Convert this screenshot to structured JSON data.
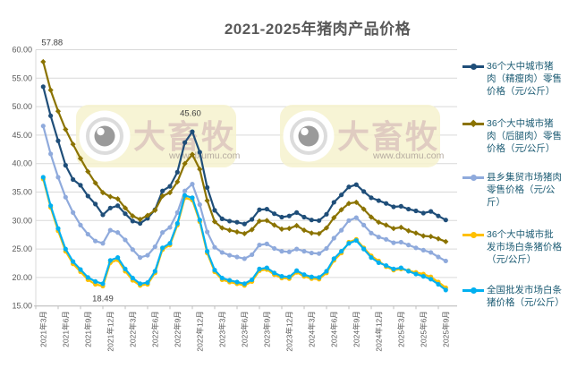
{
  "title": "2021-2025年猪肉产品价格",
  "watermark": {
    "brand": "大畜牧",
    "url": "www.dxumu.com"
  },
  "annotations": [
    {
      "text": "57.88",
      "series": 1,
      "point": 0
    },
    {
      "text": "45.60",
      "series": 0,
      "point": 20
    },
    {
      "text": "18.49",
      "series": 3,
      "point": 8
    }
  ],
  "chart_data": {
    "type": "line",
    "x_start": "2021年3月",
    "x_interval": "month",
    "x_tick_labels": [
      "2021年3月",
      "2021年6月",
      "2021年9月",
      "2021年12月",
      "2022年3月",
      "2022年6月",
      "2022年9月",
      "2022年12月",
      "2023年3月",
      "2023年6月",
      "2023年9月",
      "2023年12月",
      "2024年3月",
      "2024年6月",
      "2024年9月",
      "2024年12月",
      "2025年3月",
      "2025年6月",
      "2025年9月"
    ],
    "y_tick_labels": [
      "60.00",
      "55.00",
      "50.00",
      "45.00",
      "40.00",
      "35.00",
      "30.00",
      "25.00",
      "20.00",
      "15.00"
    ],
    "ylim": [
      15,
      60
    ],
    "grid": "horizontal",
    "legend_position": "right",
    "series": [
      {
        "name": "36个大中城市猪肉（精瘦肉）零售价格（元/公斤）",
        "color": "#1F4E79",
        "marker": "circle",
        "values": [
          53.5,
          48.4,
          44.0,
          39.7,
          37.2,
          36.2,
          34.3,
          32.9,
          31.0,
          32.2,
          32.6,
          31.2,
          29.9,
          29.5,
          30.4,
          31.9,
          35.2,
          36.0,
          38.5,
          43.7,
          45.6,
          42.0,
          35.8,
          31.8,
          30.3,
          29.9,
          29.7,
          29.4,
          30.2,
          31.9,
          32.0,
          31.2,
          30.6,
          30.8,
          31.4,
          30.6,
          30.1,
          30.0,
          31.1,
          33.2,
          34.5,
          35.9,
          36.3,
          35.1,
          34.0,
          33.5,
          33.0,
          32.4,
          32.5,
          32.0,
          31.7,
          31.3,
          31.6,
          30.8,
          30.1
        ]
      },
      {
        "name": "36个大中城市猪肉（后腿肉）零售价格（元/公斤）",
        "color": "#8B7300",
        "marker": "diamond",
        "values": [
          57.88,
          52.9,
          49.2,
          46.0,
          43.4,
          40.9,
          38.6,
          36.6,
          34.9,
          34.2,
          33.8,
          32.2,
          30.8,
          30.2,
          30.9,
          31.8,
          34.3,
          34.9,
          36.8,
          40.0,
          41.6,
          39.0,
          33.5,
          29.8,
          28.7,
          28.3,
          28.0,
          27.7,
          28.4,
          29.9,
          30.0,
          29.2,
          28.5,
          28.6,
          29.1,
          28.3,
          27.8,
          27.7,
          28.7,
          30.5,
          31.9,
          33.0,
          33.2,
          32.0,
          30.6,
          29.7,
          29.2,
          28.6,
          28.8,
          28.2,
          27.8,
          27.3,
          27.2,
          26.8,
          26.3
        ]
      },
      {
        "name": "县乡集贸市场猪肉零售价格（元/公斤）",
        "color": "#8FAADC",
        "marker": "circle",
        "values": [
          46.6,
          41.7,
          37.6,
          34.1,
          31.4,
          29.2,
          27.6,
          26.4,
          26.0,
          28.3,
          27.9,
          26.6,
          24.9,
          23.5,
          23.9,
          25.4,
          27.9,
          28.8,
          31.4,
          35.2,
          36.4,
          32.8,
          28.0,
          25.3,
          24.4,
          23.9,
          23.6,
          23.3,
          24.0,
          25.7,
          25.9,
          25.1,
          24.6,
          24.5,
          25.0,
          24.6,
          24.3,
          24.2,
          25.1,
          26.9,
          28.3,
          30.0,
          30.5,
          29.2,
          27.8,
          27.1,
          26.7,
          26.1,
          26.2,
          25.7,
          25.2,
          24.8,
          24.4,
          23.6,
          22.9
        ]
      },
      {
        "name": "36个大中城市批发市场白条猪价格（元/公斤）",
        "color": "#FFC000",
        "marker": "circle",
        "values": [
          37.3,
          32.3,
          28.2,
          24.6,
          22.4,
          21.0,
          19.6,
          18.8,
          18.49,
          22.6,
          23.1,
          21.1,
          19.5,
          18.6,
          18.8,
          20.8,
          24.9,
          25.7,
          29.2,
          34.0,
          33.6,
          29.8,
          24.3,
          21.0,
          19.6,
          19.2,
          18.9,
          18.6,
          19.3,
          21.2,
          21.4,
          20.5,
          19.9,
          19.8,
          20.9,
          20.2,
          19.8,
          19.7,
          20.8,
          23.0,
          24.3,
          26.2,
          26.7,
          25.2,
          23.8,
          22.9,
          21.9,
          21.3,
          21.5,
          21.2,
          20.9,
          20.6,
          20.1,
          19.2,
          18.2
        ]
      },
      {
        "name": "全国批发市场白条猪价格（元/公斤）",
        "color": "#00B0F0",
        "marker": "circle",
        "values": [
          37.6,
          32.6,
          28.6,
          25.0,
          22.8,
          21.4,
          20.0,
          19.3,
          18.9,
          23.0,
          23.5,
          21.5,
          19.9,
          18.9,
          19.1,
          21.1,
          25.2,
          26.0,
          29.5,
          34.4,
          34.0,
          30.1,
          24.6,
          21.3,
          19.9,
          19.5,
          19.2,
          18.9,
          19.6,
          21.5,
          21.7,
          20.8,
          20.2,
          20.1,
          21.2,
          20.5,
          20.1,
          20.0,
          21.1,
          23.3,
          24.6,
          26.0,
          26.5,
          25.0,
          23.5,
          22.6,
          22.1,
          21.5,
          21.7,
          21.1,
          20.6,
          20.2,
          19.7,
          18.8,
          17.8
        ]
      }
    ]
  }
}
